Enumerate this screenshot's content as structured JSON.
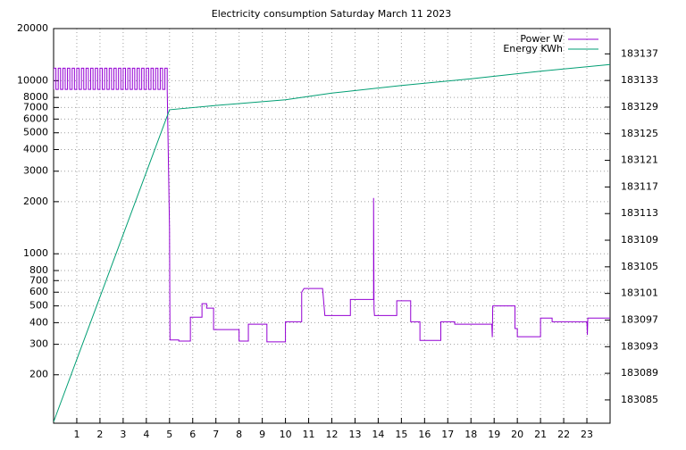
{
  "chart_data": {
    "type": "line",
    "title": "Electricity consumption Saturday March 11 2023",
    "xlim": [
      0,
      24
    ],
    "xticks": [
      1,
      2,
      3,
      4,
      5,
      6,
      7,
      8,
      9,
      10,
      11,
      12,
      13,
      14,
      15,
      16,
      17,
      18,
      19,
      20,
      21,
      22,
      23
    ],
    "ylim": [
      105,
      20000
    ],
    "ylog": true,
    "yticks": [
      200,
      300,
      400,
      500,
      600,
      700,
      800,
      1000,
      2000,
      3000,
      4000,
      5000,
      6000,
      7000,
      8000,
      10000,
      20000
    ],
    "y2lim": [
      183081.5,
      183140.8
    ],
    "y2ticks": [
      183085,
      183089,
      183093,
      183097,
      183101,
      183105,
      183109,
      183113,
      183117,
      183121,
      183125,
      183129,
      183133,
      183137
    ],
    "grid": true,
    "legend": "top-right",
    "series": [
      {
        "name": "Power W",
        "color": "#9400d3",
        "x": [
          0,
          0,
          0.1,
          0.1,
          0.2,
          0.2,
          0.3,
          0.3,
          0.4,
          0.4,
          0.5,
          0.5,
          0.6,
          0.6,
          0.7,
          0.7,
          0.8,
          0.8,
          0.9,
          0.9,
          1,
          1,
          1.1,
          1.1,
          1.2,
          1.2,
          1.3,
          1.3,
          1.4,
          1.4,
          1.5,
          1.5,
          1.6,
          1.6,
          1.7,
          1.7,
          1.8,
          1.8,
          1.9,
          1.9,
          2,
          2,
          2.1,
          2.1,
          2.2,
          2.2,
          2.3,
          2.3,
          2.4,
          2.4,
          2.5,
          2.5,
          2.6,
          2.6,
          2.7,
          2.7,
          2.8,
          2.8,
          2.9,
          2.9,
          3,
          3,
          3.1,
          3.1,
          3.2,
          3.2,
          3.3,
          3.3,
          3.4,
          3.4,
          3.5,
          3.5,
          3.6,
          3.6,
          3.7,
          3.7,
          3.8,
          3.8,
          3.9,
          3.9,
          4,
          4,
          4.1,
          4.1,
          4.2,
          4.2,
          4.3,
          4.3,
          4.4,
          4.4,
          4.5,
          4.5,
          4.6,
          4.6,
          4.7,
          4.7,
          4.8,
          4.8,
          4.9,
          4.9,
          5,
          5.02,
          5.4,
          5.4,
          5.9,
          5.9,
          6.4,
          6.4,
          6.6,
          6.6,
          6.9,
          6.9,
          8,
          8,
          8.4,
          8.4,
          9.2,
          9.2,
          10,
          10,
          10.7,
          10.7,
          10.8,
          11.6,
          11.7,
          12.8,
          12.8,
          13.8,
          13.8,
          13.82,
          13.84,
          14.8,
          14.8,
          15.4,
          15.4,
          15.8,
          15.8,
          16.7,
          16.7,
          17.3,
          17.3,
          18.9,
          18.92,
          18.94,
          19.9,
          19.9,
          20,
          20,
          21,
          21,
          21.5,
          21.5,
          23,
          23.02,
          23.04,
          24
        ],
        "values": [
          8900,
          11800,
          11800,
          8900,
          8900,
          11800,
          11800,
          8900,
          8900,
          11800,
          11800,
          8900,
          8900,
          11800,
          11800,
          8900,
          8900,
          11800,
          11800,
          8900,
          8900,
          11800,
          11800,
          8900,
          8900,
          11800,
          11800,
          8900,
          8900,
          11800,
          11800,
          8900,
          8900,
          11800,
          11800,
          8900,
          8900,
          11800,
          11800,
          8900,
          8900,
          11800,
          11800,
          8900,
          8900,
          11800,
          11800,
          8900,
          8900,
          11800,
          11800,
          8900,
          8900,
          11800,
          11800,
          8900,
          8900,
          11800,
          11800,
          8900,
          8900,
          11800,
          11800,
          8900,
          8900,
          11800,
          11800,
          8900,
          8900,
          11800,
          11800,
          8900,
          8900,
          11800,
          11800,
          8900,
          8900,
          11800,
          11800,
          8900,
          8900,
          11800,
          11800,
          8900,
          8900,
          11800,
          11800,
          8900,
          8900,
          11800,
          11800,
          8900,
          8900,
          11800,
          11800,
          8900,
          8900,
          11800,
          11800,
          8900,
          1400,
          318,
          318,
          313,
          313,
          430,
          430,
          515,
          515,
          485,
          485,
          365,
          365,
          313,
          313,
          392,
          392,
          310,
          310,
          405,
          405,
          600,
          630,
          630,
          440,
          440,
          545,
          545,
          2100,
          480,
          440,
          440,
          535,
          535,
          405,
          405,
          316,
          316,
          405,
          405,
          392,
          392,
          330,
          500,
          500,
          370,
          370,
          332,
          332,
          425,
          425,
          405,
          405,
          340,
          425,
          425
        ]
      },
      {
        "name": "Energy KWh",
        "color": "#009e73",
        "axis": "y2",
        "x": [
          0,
          5,
          7,
          10,
          12,
          15,
          18,
          21,
          24
        ],
        "values": [
          183081.7,
          183128.6,
          183129.25,
          183130.1,
          183131.1,
          183132.25,
          183133.25,
          183134.4,
          183135.4
        ]
      }
    ]
  }
}
